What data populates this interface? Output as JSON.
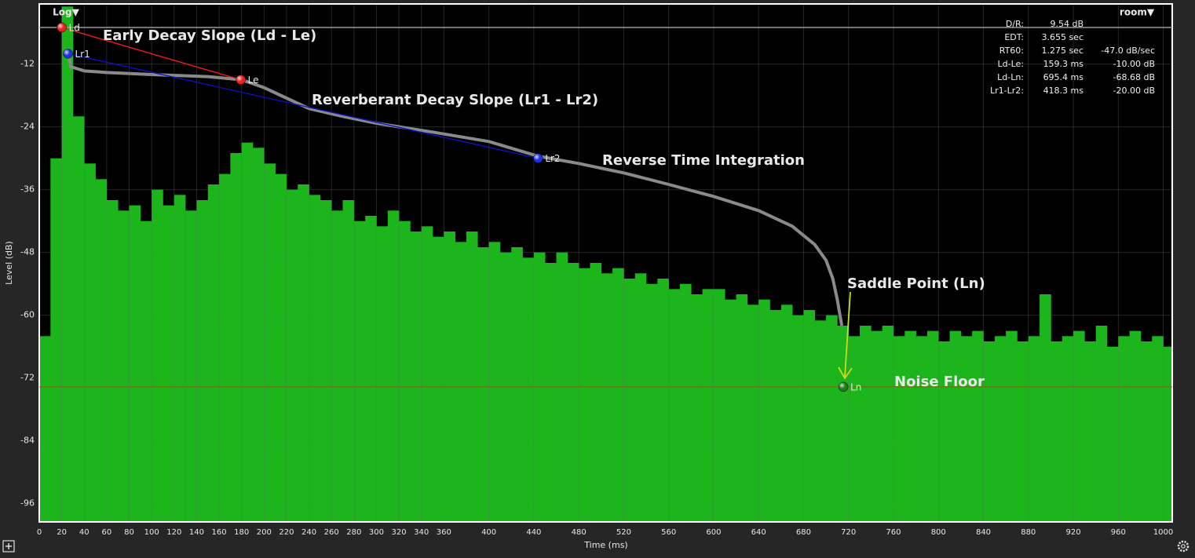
{
  "controls": {
    "scale": "Log▼",
    "preset": "room▼"
  },
  "stats": {
    "rows": [
      [
        "D/R:",
        "9.54 dB"
      ],
      [
        "EDT:",
        "3.655 sec"
      ],
      [
        "RT60:",
        "1.275 sec",
        "-47.0 dB/sec"
      ],
      [
        "Ld-Le:",
        "159.3 ms",
        "-10.00 dB"
      ],
      [
        "Ld-Ln:",
        "695.4 ms",
        "-68.68 dB"
      ],
      [
        "Lr1-Lr2:",
        "418.3 ms",
        "-20.00 dB"
      ]
    ]
  },
  "chart_data": {
    "type": "bar",
    "x_label": "Time (ms)",
    "y_label": "Level (dB)",
    "xlim": [
      0,
      1008
    ],
    "ylim": [
      -99.5,
      -0.5
    ],
    "xticks": [
      0,
      20,
      40,
      60,
      80,
      100,
      120,
      140,
      160,
      180,
      200,
      220,
      240,
      260,
      280,
      300,
      320,
      340,
      360,
      400,
      440,
      480,
      520,
      560,
      600,
      640,
      680,
      720,
      760,
      800,
      840,
      880,
      920,
      960,
      1000
    ],
    "yticks": [
      -96,
      -84,
      -72,
      -60,
      -48,
      -36,
      -24,
      -12
    ],
    "grid": true,
    "series": [
      {
        "color": "#1cb51c",
        "x": [
          0,
          10,
          20,
          30,
          40,
          50,
          60,
          70,
          80,
          90,
          100,
          110,
          120,
          130,
          140,
          150,
          160,
          170,
          180,
          190,
          200,
          210,
          220,
          230,
          240,
          250,
          260,
          270,
          280,
          290,
          300,
          310,
          320,
          330,
          340,
          350,
          360,
          370,
          380,
          390,
          400,
          410,
          420,
          430,
          440,
          450,
          460,
          470,
          480,
          490,
          500,
          510,
          520,
          530,
          540,
          550,
          560,
          570,
          580,
          590,
          600,
          610,
          620,
          630,
          640,
          650,
          660,
          670,
          680,
          690,
          700,
          710,
          720,
          730,
          740,
          750,
          760,
          770,
          780,
          790,
          800,
          810,
          820,
          830,
          840,
          850,
          860,
          870,
          880,
          890,
          900,
          910,
          920,
          930,
          940,
          950,
          960,
          970,
          980,
          990,
          1000
        ],
        "values": [
          -64,
          -30,
          -1,
          -22,
          -31,
          -34,
          -38,
          -40,
          -39,
          -42,
          -36,
          -39,
          -37,
          -40,
          -38,
          -35,
          -33,
          -29,
          -27,
          -28,
          -31,
          -33,
          -36,
          -35,
          -37,
          -38,
          -40,
          -38,
          -42,
          -41,
          -43,
          -40,
          -42,
          -44,
          -43,
          -45,
          -44,
          -46,
          -44,
          -47,
          -46,
          -48,
          -47,
          -49,
          -48,
          -50,
          -48,
          -50,
          -51,
          -50,
          -52,
          -51,
          -53,
          -52,
          -54,
          -53,
          -55,
          -54,
          -56,
          -55,
          -55,
          -57,
          -56,
          -58,
          -57,
          -59,
          -58,
          -60,
          -59,
          -61,
          -60,
          -62,
          -64,
          -62,
          -63,
          -62,
          -64,
          -63,
          -64,
          -63,
          -65,
          -63,
          -64,
          -63,
          -65,
          -64,
          -63,
          -65,
          -64,
          -56,
          -65,
          -64,
          -63,
          -65,
          -62,
          -66,
          -64,
          -63,
          -65,
          -64,
          -66
        ]
      },
      {
        "type": "line",
        "name": "Reverse Time Integration",
        "color": "#8a8a8a",
        "x": [
          25,
          28,
          40,
          60,
          100,
          150,
          180,
          200,
          220,
          240,
          270,
          300,
          350,
          400,
          443.8,
          480,
          520,
          560,
          600,
          640,
          670,
          690,
          700,
          706,
          710,
          714
        ],
        "values": [
          -9,
          -12.5,
          -13.3,
          -13.6,
          -14,
          -14.4,
          -15,
          -16.5,
          -18.5,
          -20.5,
          -22,
          -23.3,
          -25,
          -26.8,
          -29.6,
          -31,
          -32.8,
          -35,
          -37.3,
          -40,
          -43,
          -46.5,
          -49.5,
          -53,
          -57,
          -62
        ]
      }
    ],
    "markers": [
      {
        "label": "Ld",
        "x": 20,
        "y": -5,
        "color": "#e82020"
      },
      {
        "label": "Le",
        "x": 179.3,
        "y": -15,
        "color": "#e82020"
      },
      {
        "label": "Lr1",
        "x": 25.5,
        "y": -10,
        "color": "#2030e0"
      },
      {
        "label": "Lr2",
        "x": 443.8,
        "y": -30,
        "color": "#2030e0"
      },
      {
        "label": "Ln",
        "x": 715.4,
        "y": -73.68,
        "color": "#1f7a1f"
      }
    ],
    "early_slope": {
      "label": "Early Decay Slope (Ld - Le)",
      "color": "#ff1a1a"
    },
    "reverberant_slope": {
      "label": "Reverberant Decay Slope (Lr1 - Lr2)",
      "color": "#1010c8"
    },
    "saddle_label": "Saddle Point (Ln)",
    "noise_floor": {
      "label": "Noise Floor",
      "value": -73.7,
      "color": "#b8480f"
    }
  }
}
